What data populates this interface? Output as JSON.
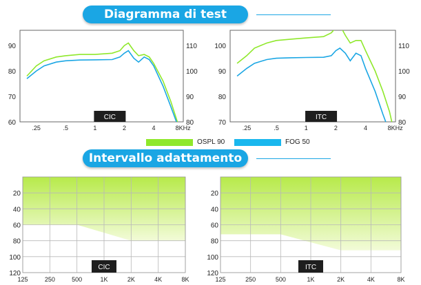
{
  "section1": {
    "title": "Diagramma di test"
  },
  "section2": {
    "title": "Intervallo adattamento"
  },
  "colors": {
    "accent": "#1aa6e4",
    "ospl": "#8fe82b",
    "fog": "#1aa6e4",
    "fill_light": "#f2fbd8",
    "fill_dark": "#b7ea4a"
  },
  "legend": [
    {
      "label": "OSPL 90",
      "color": "#8fe82b"
    },
    {
      "label": "FOG 50",
      "color": "#19b7ee"
    }
  ],
  "chart_data": [
    {
      "type": "line",
      "badge": "CIC",
      "x": [
        0.2,
        0.25,
        0.3,
        0.4,
        0.5,
        0.7,
        1,
        1.5,
        1.8,
        2.0,
        2.2,
        2.5,
        2.8,
        3.2,
        3.6,
        4.0,
        5.0,
        6.0,
        7.0,
        8.0
      ],
      "xticks": [
        0.25,
        0.5,
        1,
        2,
        4,
        8
      ],
      "xticklabels": [
        ".25",
        ".5",
        "1",
        "2",
        "4",
        "8KHz"
      ],
      "yticks_left": [
        60,
        70,
        80,
        90
      ],
      "yticks_right": [
        80,
        90,
        100,
        110
      ],
      "ylim_left": [
        60,
        96
      ],
      "ylim_right": [
        80,
        116
      ],
      "series": [
        {
          "name": "OSPL 90",
          "axis": "right",
          "values": [
            98,
            102,
            104,
            105.5,
            106,
            106.5,
            106.5,
            107,
            108,
            110,
            111,
            108,
            106,
            106.5,
            105.5,
            103,
            96,
            88,
            80,
            70
          ]
        },
        {
          "name": "FOG 50",
          "axis": "left",
          "values": [
            77,
            80,
            82,
            83.5,
            84,
            84.3,
            84.4,
            84.5,
            85.5,
            87,
            88,
            85,
            83.5,
            85.5,
            84.5,
            82,
            74,
            66,
            59,
            50
          ]
        }
      ]
    },
    {
      "type": "line",
      "badge": "ITC",
      "x": [
        0.2,
        0.25,
        0.3,
        0.4,
        0.5,
        0.7,
        1,
        1.5,
        1.8,
        2.0,
        2.2,
        2.5,
        2.8,
        3.2,
        3.6,
        4.0,
        5.0,
        6.0,
        7.0,
        8.0
      ],
      "xticks": [
        0.25,
        0.5,
        1,
        2,
        4,
        8
      ],
      "xticklabels": [
        ".25",
        ".5",
        "1",
        "2",
        "4",
        "8KHz"
      ],
      "yticks_left": [
        70,
        80,
        90,
        100
      ],
      "yticks_right": [
        80,
        90,
        100,
        110
      ],
      "ylim_left": [
        70,
        106
      ],
      "ylim_right": [
        80,
        116
      ],
      "series": [
        {
          "name": "OSPL 90",
          "axis": "left",
          "values": [
            93,
            96,
            99,
            101,
            102,
            102.5,
            103,
            103.5,
            105,
            107,
            108,
            104,
            101,
            102,
            102,
            98,
            90,
            82,
            74,
            64
          ]
        },
        {
          "name": "FOG 50",
          "axis": "left",
          "values": [
            88,
            91,
            93,
            94.5,
            95,
            95.2,
            95.3,
            95.4,
            96,
            98,
            99,
            97,
            94,
            97,
            96,
            91,
            82,
            73,
            66,
            56
          ]
        }
      ]
    },
    {
      "type": "area",
      "badge": "CIC",
      "categories": [
        "125",
        "250",
        "500",
        "1K",
        "2K",
        "4K",
        "8K"
      ],
      "yticks": [
        20,
        40,
        60,
        80,
        100,
        120
      ],
      "ylim": [
        0,
        120
      ],
      "y_inverted": true,
      "boundary": [
        {
          "x": 0,
          "y": 60
        },
        {
          "x": 2,
          "y": 60
        },
        {
          "x": 4,
          "y": 80
        },
        {
          "x": 6,
          "y": 80
        }
      ]
    },
    {
      "type": "area",
      "badge": "ITC",
      "categories": [
        "125",
        "250",
        "500",
        "1K",
        "2K",
        "4K",
        "8K"
      ],
      "yticks": [
        20,
        40,
        60,
        80,
        100,
        120
      ],
      "ylim": [
        0,
        120
      ],
      "y_inverted": true,
      "boundary": [
        {
          "x": 0,
          "y": 72
        },
        {
          "x": 2,
          "y": 72
        },
        {
          "x": 4,
          "y": 92
        },
        {
          "x": 6,
          "y": 92
        }
      ]
    }
  ]
}
